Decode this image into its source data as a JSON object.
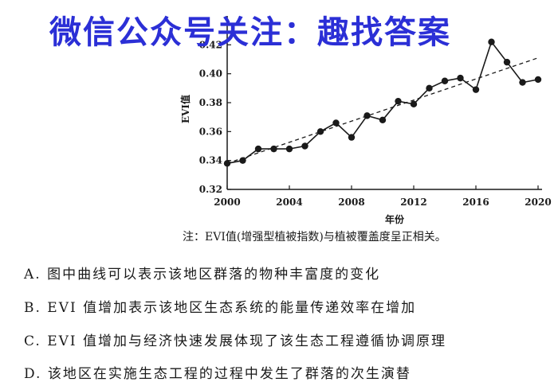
{
  "watermark": "微信公众号关注：趣找答案",
  "note": "注：EVI值(增强型植被指数)与植被覆盖度呈正相关。",
  "options": [
    "A. 图中曲线可以表示该地区群落的物种丰富度的变化",
    "B. EVI 值增加表示该地区生态系统的能量传递效率在增加",
    "C. EVI 值增加与经济快速发展体现了该生态工程遵循协调原理",
    "D. 该地区在实施生态工程的过程中发生了群落的次生演替"
  ],
  "chart_data": {
    "type": "line",
    "xlabel": "年份",
    "ylabel": "EVI值",
    "xlim": [
      2000,
      2020
    ],
    "ylim": [
      0.32,
      0.44
    ],
    "xticks": [
      2000,
      2004,
      2008,
      2012,
      2016,
      2020
    ],
    "yticks": [
      0.32,
      0.34,
      0.36,
      0.38,
      0.4,
      0.42
    ],
    "grid": false,
    "series": [
      {
        "x": [
          2000,
          2001,
          2002,
          2003,
          2004,
          2005,
          2006,
          2007,
          2008,
          2009,
          2010,
          2011,
          2012,
          2013,
          2014,
          2015,
          2016,
          2017,
          2018,
          2019,
          2020
        ],
        "values": [
          0.338,
          0.34,
          0.348,
          0.348,
          0.348,
          0.35,
          0.36,
          0.366,
          0.356,
          0.371,
          0.368,
          0.381,
          0.379,
          0.39,
          0.395,
          0.397,
          0.389,
          0.422,
          0.408,
          0.394,
          0.396
        ],
        "style": "solid-markers",
        "color": "#1a1a1a"
      },
      {
        "x": [
          2000,
          2020
        ],
        "values": [
          0.338,
          0.411
        ],
        "style": "dashed",
        "color": "#1a1a1a"
      }
    ]
  }
}
